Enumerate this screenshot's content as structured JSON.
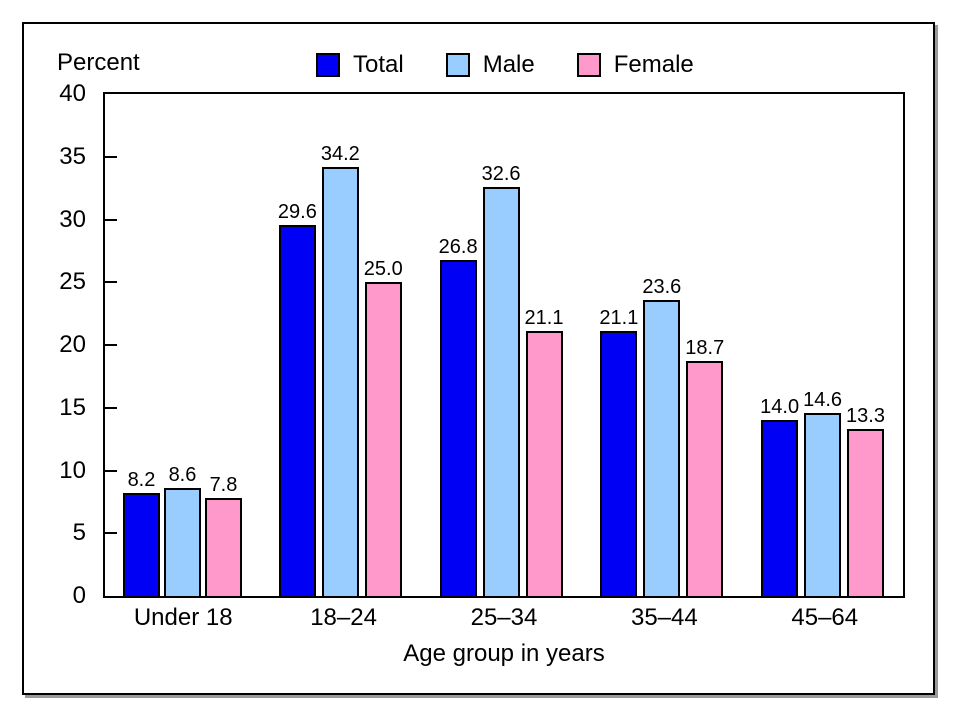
{
  "chart_data": {
    "type": "bar",
    "title": "",
    "ylabel": "Percent",
    "xlabel": "Age group in years",
    "ylim": [
      0,
      40
    ],
    "yticks": [
      0,
      5,
      10,
      15,
      20,
      25,
      30,
      35,
      40
    ],
    "grid": false,
    "legend_position": "top",
    "categories": [
      "Under 18",
      "18–24",
      "25–34",
      "35–44",
      "45–64"
    ],
    "series": [
      {
        "name": "Total",
        "color": "#0000F5",
        "values": [
          "8.2",
          "29.6",
          "26.8",
          "21.1",
          "14.0"
        ]
      },
      {
        "name": "Male",
        "color": "#99CCFF",
        "values": [
          "8.6",
          "34.2",
          "32.6",
          "23.6",
          "14.6"
        ]
      },
      {
        "name": "Female",
        "color": "#FF99CC",
        "values": [
          "7.8",
          "25.0",
          "21.1",
          "18.7",
          "13.3"
        ]
      }
    ],
    "colors": {
      "axis": "#000000",
      "frame_shadow": "#9a9a9a",
      "background": "#ffffff"
    }
  }
}
